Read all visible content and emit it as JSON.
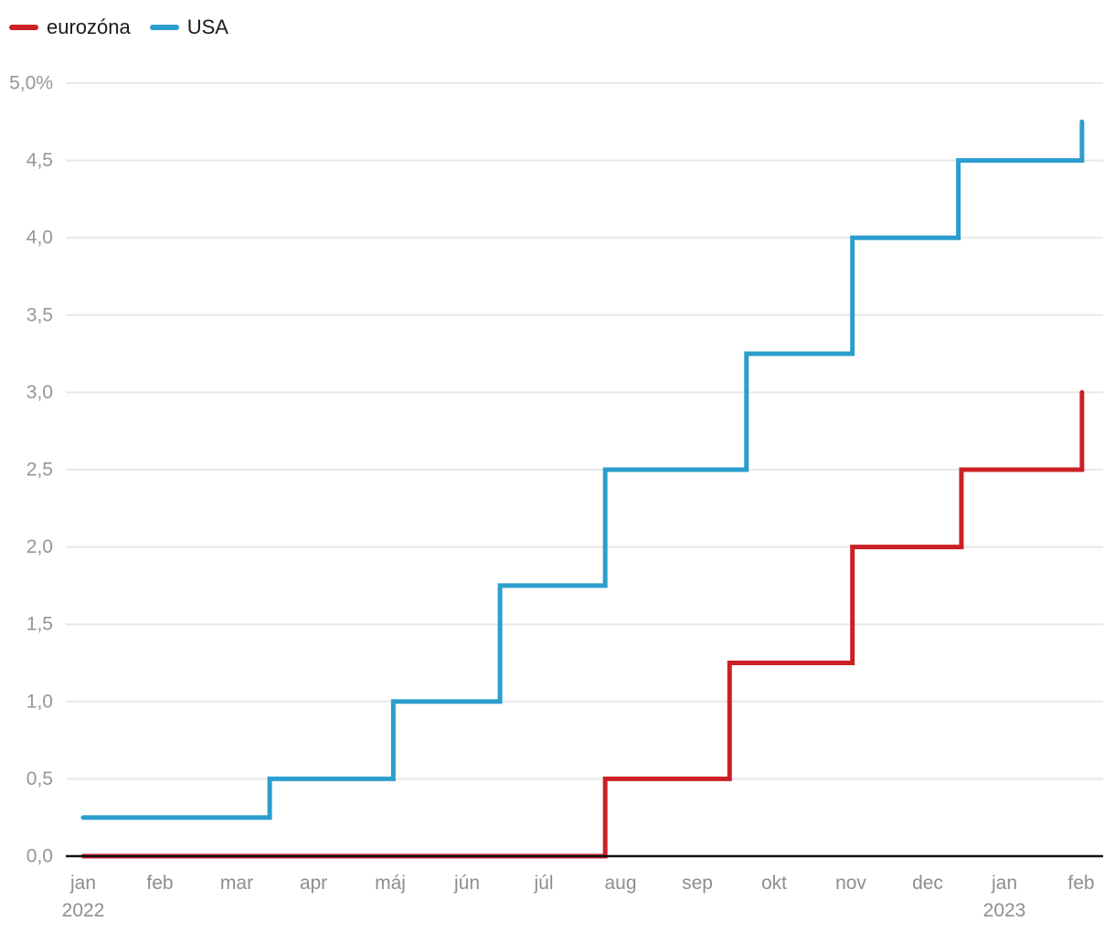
{
  "legend": {
    "items": [
      {
        "label": "eurozóna",
        "color": "#cb2026"
      },
      {
        "label": "USA",
        "color": "#2b9ecd"
      }
    ]
  },
  "chart_data": {
    "type": "line",
    "subtype": "step-after",
    "title": "",
    "xlabel": "",
    "ylabel": "",
    "unit": "%",
    "grid": true,
    "legend_position": "top-left",
    "x_axis": {
      "unit": "month",
      "tick_labels": [
        "jan",
        "feb",
        "mar",
        "apr",
        "máj",
        "jún",
        "júl",
        "aug",
        "sep",
        "okt",
        "nov",
        "dec",
        "jan",
        "feb"
      ],
      "year_labels": [
        {
          "tick_index": 0,
          "text": "2022"
        },
        {
          "tick_index": 12,
          "text": "2023"
        }
      ]
    },
    "y_axis": {
      "min": 0.0,
      "max": 5.0,
      "step": 0.5,
      "tick_labels": [
        "0,0",
        "0,5",
        "1,0",
        "1,5",
        "2,0",
        "2,5",
        "3,0",
        "3,5",
        "4,0",
        "4,5",
        "5,0%"
      ]
    },
    "series": [
      {
        "name": "eurozóna",
        "color": "#cb2026",
        "steps": [
          {
            "month": 0.0,
            "rate": 0.0
          },
          {
            "month": 6.8,
            "rate": 0.5
          },
          {
            "month": 8.42,
            "rate": 1.25
          },
          {
            "month": 10.02,
            "rate": 2.0
          },
          {
            "month": 11.44,
            "rate": 2.5
          },
          {
            "month": 13.01,
            "rate": 3.0
          }
        ]
      },
      {
        "name": "USA",
        "color": "#2b9ecd",
        "steps": [
          {
            "month": 0.0,
            "rate": 0.25
          },
          {
            "month": 2.43,
            "rate": 0.5
          },
          {
            "month": 4.04,
            "rate": 1.0
          },
          {
            "month": 5.43,
            "rate": 1.75
          },
          {
            "month": 6.8,
            "rate": 2.5
          },
          {
            "month": 8.64,
            "rate": 3.25
          },
          {
            "month": 10.02,
            "rate": 4.0
          },
          {
            "month": 11.4,
            "rate": 4.5
          },
          {
            "month": 13.01,
            "rate": 4.75
          }
        ]
      }
    ],
    "colors": {
      "grid": "#e8e8e8",
      "axis": "#111111",
      "ytick_text": "#969696",
      "xtick_text": "#8e8e8e"
    }
  }
}
